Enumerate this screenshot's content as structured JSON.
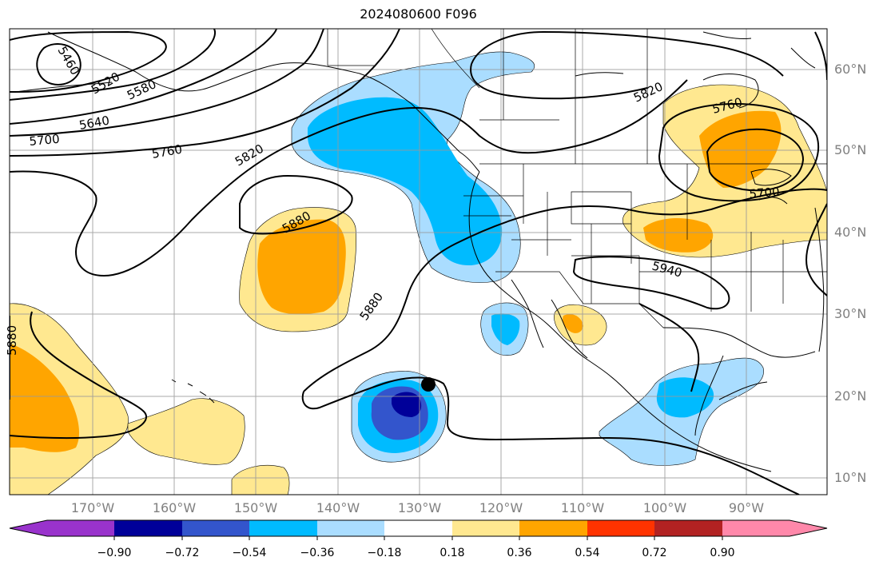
{
  "title": "2024080600 F096",
  "lat_labels": [
    "60°N",
    "50°N",
    "40°N",
    "30°N",
    "20°N",
    "10°N"
  ],
  "lon_labels": [
    "170°W",
    "160°W",
    "150°W",
    "140°W",
    "130°W",
    "120°W",
    "110°W",
    "100°W",
    "90°W"
  ],
  "colorbar": {
    "ticks": [
      "−0.90",
      "−0.72",
      "−0.54",
      "−0.36",
      "−0.18",
      "0.18",
      "0.36",
      "0.54",
      "0.72",
      "0.90"
    ],
    "colors": [
      "#9933cc",
      "#000099",
      "#3355cc",
      "#00bbff",
      "#aaddff",
      "#ffffff",
      "#ffe890",
      "#ffa500",
      "#ff3300",
      "#b22222",
      "#ff88aa"
    ]
  },
  "contour_labels": [
    "5460",
    "5520",
    "5580",
    "5640",
    "5700",
    "5760",
    "5820",
    "5820",
    "5880",
    "5880",
    "5880",
    "5940",
    "5760",
    "5700"
  ],
  "colors": {
    "neg_weak": "#aaddff",
    "neg_mod": "#00bbff",
    "neg_strong": "#3355cc",
    "neg_max": "#000099",
    "pos_weak": "#ffe890",
    "pos_mod": "#ffa500",
    "contour": "#000000",
    "grid": "#999999",
    "label": "#808080"
  },
  "marker_icon": "storm-center-dot"
}
